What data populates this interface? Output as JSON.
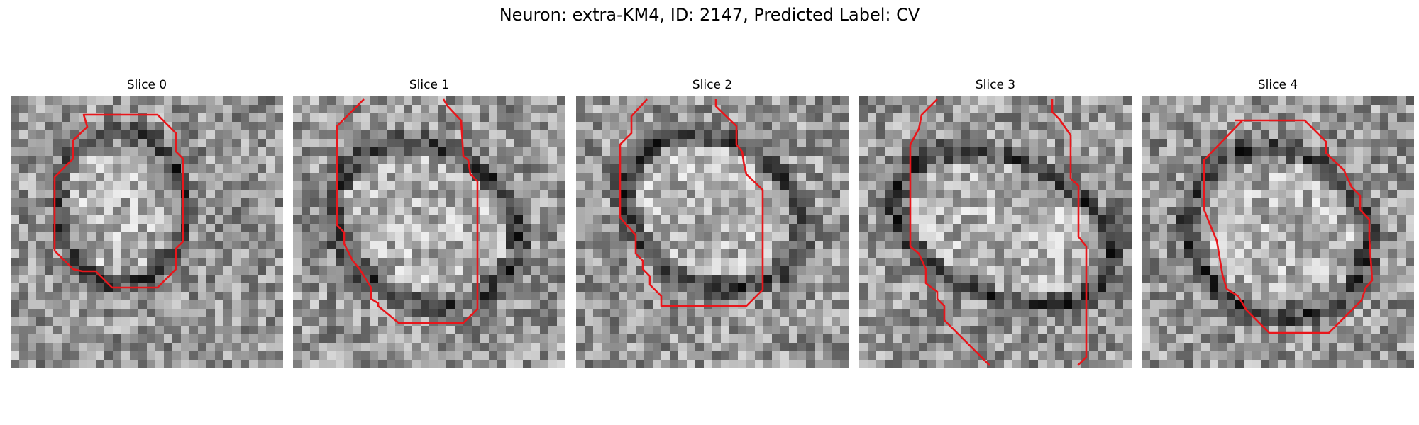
{
  "figure": {
    "title": "Neuron: extra-KM4, ID: 2147, Predicted Label: CV"
  },
  "colors": {
    "contour": "#e8161b",
    "background": "#ffffff"
  },
  "slices": [
    {
      "label": "Slice 0"
    },
    {
      "label": "Slice 1"
    },
    {
      "label": "Slice 2"
    },
    {
      "label": "Slice 3"
    },
    {
      "label": "Slice 4"
    }
  ]
}
